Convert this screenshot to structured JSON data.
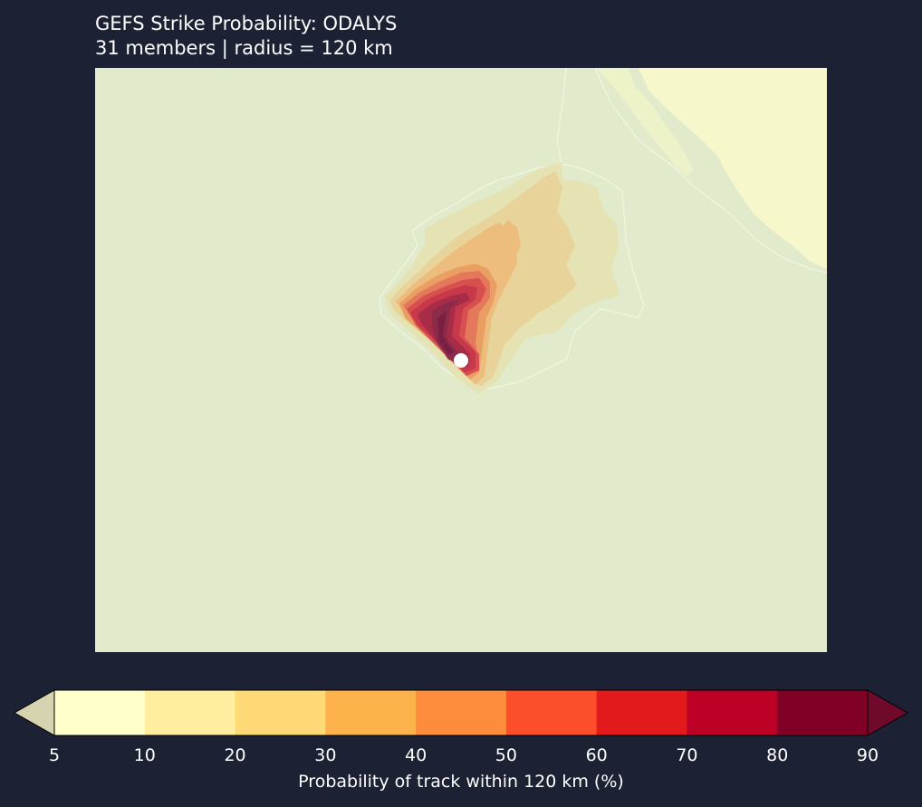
{
  "title": {
    "line1": "GEFS Strike Probability: ODALYS",
    "line2": "31 members  |  radius = 120 km"
  },
  "colors": {
    "background": "#1c2133",
    "ocean": "#e1ebcc",
    "land": "#f6f7cb",
    "storm_marker": "#ffffff"
  },
  "colorbar": {
    "levels": [
      5,
      10,
      20,
      30,
      40,
      50,
      60,
      70,
      80,
      90
    ],
    "under_color": "#d6d3b1",
    "over_color": "#700a2b",
    "bin_colors": [
      "#ffffcc",
      "#ffeda0",
      "#fed976",
      "#feb24c",
      "#fd8d3c",
      "#fc4e2a",
      "#e31a1c",
      "#bd0026",
      "#800026"
    ],
    "tick_labels": [
      "5",
      "10",
      "20",
      "30",
      "40",
      "50",
      "60",
      "70",
      "80",
      "90"
    ],
    "label": "Probability of track within 120 km (%)"
  }
}
